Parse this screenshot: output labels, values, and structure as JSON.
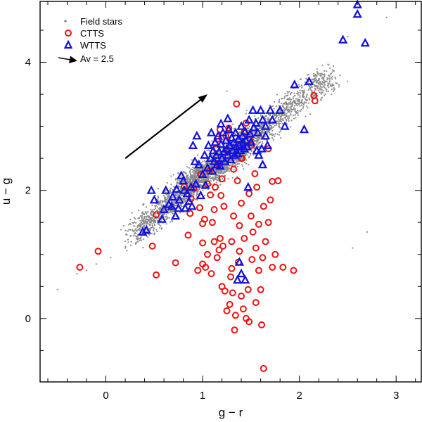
{
  "chart_data": {
    "type": "scatter",
    "xlabel": "g − r",
    "ylabel": "u − g",
    "xlim": [
      -0.68,
      3.26
    ],
    "ylim": [
      -0.99,
      4.95
    ],
    "x_ticks": [
      0,
      1,
      2,
      3
    ],
    "x_tick_labels": [
      "0",
      "1",
      "2",
      "3"
    ],
    "y_ticks": [
      0,
      2,
      4
    ],
    "y_tick_labels": [
      "0",
      "2",
      "4"
    ],
    "x_minor_step": 0.2,
    "y_minor_step": 0.5,
    "grid": false,
    "legend_position": "top-left",
    "colors": {
      "field": "#8c8c8c",
      "ctts": "#ee1111",
      "wtts": "#1111dd",
      "arrow": "#000000"
    },
    "field_stars_trend": {
      "description": "dense stellar locus of field stars",
      "core_segments": [
        {
          "x": [
            0.3,
            0.8
          ],
          "y": [
            1.3,
            2.0
          ]
        },
        {
          "x": [
            0.8,
            1.5
          ],
          "y": [
            2.0,
            2.8
          ]
        },
        {
          "x": [
            1.5,
            2.3
          ],
          "y": [
            2.8,
            3.8
          ]
        }
      ],
      "extended_points": [
        [
          -0.5,
          0.45
        ],
        [
          -0.3,
          0.7
        ],
        [
          -0.2,
          0.75
        ],
        [
          -0.1,
          0.85
        ],
        [
          0.05,
          0.95
        ],
        [
          2.5,
          4.4
        ],
        [
          2.7,
          4.3
        ],
        [
          2.9,
          4.7
        ],
        [
          3.0,
          4.85
        ],
        [
          2.55,
          1.1
        ],
        [
          2.7,
          1.35
        ],
        [
          0.2,
          1.1
        ],
        [
          0.95,
          2.55
        ],
        [
          1.25,
          3.55
        ],
        [
          1.45,
          3.2
        ]
      ]
    },
    "series": [
      {
        "name": "Field stars",
        "marker": "dot",
        "points": []
      },
      {
        "name": "CTTS",
        "marker": "circle",
        "points": [
          [
            -0.08,
            1.05
          ],
          [
            -0.27,
            0.8
          ],
          [
            0.52,
            0.68
          ],
          [
            0.48,
            1.13
          ],
          [
            0.52,
            1.62
          ],
          [
            0.72,
            0.87
          ],
          [
            0.81,
            2.06
          ],
          [
            0.85,
            1.3
          ],
          [
            0.87,
            1.64
          ],
          [
            0.88,
            1.87
          ],
          [
            0.91,
            2.03
          ],
          [
            0.95,
            0.75
          ],
          [
            0.97,
            1.73
          ],
          [
            0.98,
            2.25
          ],
          [
            1.0,
            0.85
          ],
          [
            1.0,
            1.18
          ],
          [
            1.0,
            1.48
          ],
          [
            1.02,
            1.55
          ],
          [
            1.03,
            0.8
          ],
          [
            1.05,
            1.0
          ],
          [
            1.05,
            2.1
          ],
          [
            1.07,
            2.3
          ],
          [
            1.08,
            1.93
          ],
          [
            1.09,
            0.7
          ],
          [
            1.1,
            1.5
          ],
          [
            1.12,
            1.2
          ],
          [
            1.12,
            1.7
          ],
          [
            1.13,
            2.05
          ],
          [
            1.14,
            2.65
          ],
          [
            1.15,
            0.95
          ],
          [
            1.15,
            2.8
          ],
          [
            1.16,
            2.42
          ],
          [
            1.17,
            1.07
          ],
          [
            1.18,
            1.25
          ],
          [
            1.18,
            2.95
          ],
          [
            1.19,
            1.92
          ],
          [
            1.2,
            0.5
          ],
          [
            1.2,
            2.18
          ],
          [
            1.21,
            1.13
          ],
          [
            1.22,
            1.75
          ],
          [
            1.23,
            0.43
          ],
          [
            1.24,
            2.85
          ],
          [
            1.25,
            0.12
          ],
          [
            1.26,
            2.6
          ],
          [
            1.27,
            2.97
          ],
          [
            1.28,
            0.22
          ],
          [
            1.29,
            0.65
          ],
          [
            1.3,
            0.78
          ],
          [
            1.3,
            1.2
          ],
          [
            1.31,
            0.4
          ],
          [
            1.32,
            1.6
          ],
          [
            1.32,
            2.33
          ],
          [
            1.33,
            -0.18
          ],
          [
            1.34,
            0.05
          ],
          [
            1.35,
            3.35
          ],
          [
            1.36,
            2.15
          ],
          [
            1.37,
            0.88
          ],
          [
            1.38,
            1.05
          ],
          [
            1.38,
            1.45
          ],
          [
            1.4,
            0.35
          ],
          [
            1.4,
            1.8
          ],
          [
            1.41,
            2.5
          ],
          [
            1.42,
            0.15
          ],
          [
            1.43,
            1.25
          ],
          [
            1.43,
            2.9
          ],
          [
            1.45,
            0.0
          ],
          [
            1.45,
            3.05
          ],
          [
            1.47,
            0.45
          ],
          [
            1.48,
            1.95
          ],
          [
            1.48,
            -0.05
          ],
          [
            1.5,
            1.6
          ],
          [
            1.5,
            2.7
          ],
          [
            1.51,
            0.92
          ],
          [
            1.52,
            1.35
          ],
          [
            1.54,
            2.26
          ],
          [
            1.55,
            0.25
          ],
          [
            1.55,
            1.1
          ],
          [
            1.56,
            2.05
          ],
          [
            1.58,
            0.75
          ],
          [
            1.58,
            1.47
          ],
          [
            1.6,
            0.45
          ],
          [
            1.61,
            -0.1
          ],
          [
            1.62,
            0.95
          ],
          [
            1.63,
            1.75
          ],
          [
            1.63,
            -0.78
          ],
          [
            1.65,
            1.2
          ],
          [
            1.68,
            1.5
          ],
          [
            1.68,
            2.65
          ],
          [
            1.7,
            1.85
          ],
          [
            1.72,
            0.8
          ],
          [
            1.72,
            2.14
          ],
          [
            1.75,
            1.0
          ],
          [
            1.78,
            2.15
          ],
          [
            1.83,
            0.8
          ],
          [
            1.94,
            0.75
          ],
          [
            2.16,
            3.4
          ],
          [
            2.15,
            3.48
          ],
          [
            1.49,
            2.8
          ],
          [
            1.4,
            2.5
          ]
        ]
      },
      {
        "name": "WTTS",
        "marker": "triangle",
        "points": [
          [
            0.38,
            1.35
          ],
          [
            0.42,
            1.38
          ],
          [
            0.47,
            2.0
          ],
          [
            0.5,
            1.85
          ],
          [
            0.58,
            1.55
          ],
          [
            0.6,
            1.7
          ],
          [
            0.62,
            2.0
          ],
          [
            0.65,
            1.78
          ],
          [
            0.68,
            1.75
          ],
          [
            0.69,
            1.9
          ],
          [
            0.72,
            1.6
          ],
          [
            0.73,
            2.02
          ],
          [
            0.75,
            1.72
          ],
          [
            0.76,
            1.85
          ],
          [
            0.78,
            2.23
          ],
          [
            0.8,
            2.15
          ],
          [
            0.81,
            2.0
          ],
          [
            0.82,
            1.72
          ],
          [
            0.84,
            1.95
          ],
          [
            0.86,
            1.83
          ],
          [
            0.88,
            2.05
          ],
          [
            0.89,
            1.75
          ],
          [
            0.9,
            2.7
          ],
          [
            0.92,
            2.45
          ],
          [
            0.93,
            2.1
          ],
          [
            0.94,
            2.85
          ],
          [
            0.96,
            2.4
          ],
          [
            0.98,
            1.92
          ],
          [
            1.0,
            2.25
          ],
          [
            1.02,
            2.55
          ],
          [
            1.03,
            2.08
          ],
          [
            1.05,
            2.35
          ],
          [
            1.06,
            2.7
          ],
          [
            1.08,
            2.5
          ],
          [
            1.09,
            2.9
          ],
          [
            1.1,
            2.3
          ],
          [
            1.11,
            2.62
          ],
          [
            1.12,
            2.45
          ],
          [
            1.13,
            2.75
          ],
          [
            1.14,
            2.55
          ],
          [
            1.15,
            2.4
          ],
          [
            1.16,
            2.85
          ],
          [
            1.17,
            2.6
          ],
          [
            1.18,
            2.38
          ],
          [
            1.19,
            2.72
          ],
          [
            1.2,
            2.5
          ],
          [
            1.21,
            2.9
          ],
          [
            1.22,
            2.6
          ],
          [
            1.23,
            2.45
          ],
          [
            1.24,
            2.78
          ],
          [
            1.25,
            2.65
          ],
          [
            1.26,
            2.55
          ],
          [
            1.27,
            2.95
          ],
          [
            1.28,
            2.7
          ],
          [
            1.29,
            2.48
          ],
          [
            1.3,
            2.82
          ],
          [
            1.31,
            2.62
          ],
          [
            1.32,
            2.75
          ],
          [
            1.33,
            2.55
          ],
          [
            1.34,
            2.9
          ],
          [
            1.35,
            2.68
          ],
          [
            1.36,
            2.58
          ],
          [
            1.37,
            2.8
          ],
          [
            1.38,
            2.7
          ],
          [
            1.39,
            2.62
          ],
          [
            1.4,
            3.0
          ],
          [
            1.41,
            2.85
          ],
          [
            1.42,
            2.75
          ],
          [
            1.43,
            2.65
          ],
          [
            1.44,
            2.92
          ],
          [
            1.45,
            2.78
          ],
          [
            1.46,
            2.68
          ],
          [
            1.48,
            3.1
          ],
          [
            1.49,
            2.88
          ],
          [
            1.5,
            2.75
          ],
          [
            1.52,
            3.25
          ],
          [
            1.53,
            2.98
          ],
          [
            1.55,
            3.05
          ],
          [
            1.57,
            2.9
          ],
          [
            1.6,
            3.25
          ],
          [
            1.62,
            3.1
          ],
          [
            1.65,
            3.0
          ],
          [
            1.7,
            3.25
          ],
          [
            1.72,
            3.1
          ],
          [
            1.8,
            3.25
          ],
          [
            1.85,
            3.0
          ],
          [
            1.65,
            2.85
          ],
          [
            1.67,
            2.7
          ],
          [
            1.61,
            2.65
          ],
          [
            1.26,
            3.12
          ],
          [
            1.19,
            3.04
          ],
          [
            1.44,
            0.6
          ],
          [
            1.36,
            0.6
          ],
          [
            1.4,
            0.7
          ],
          [
            1.38,
            0.88
          ],
          [
            1.95,
            3.65
          ],
          [
            2.1,
            3.7
          ],
          [
            2.05,
            2.95
          ],
          [
            2.45,
            4.35
          ],
          [
            2.6,
            4.9
          ],
          [
            2.6,
            4.75
          ],
          [
            2.68,
            4.3
          ],
          [
            1.47,
            2.05
          ],
          [
            1.58,
            2.55
          ],
          [
            1.62,
            2.4
          ],
          [
            1.56,
            2.62
          ]
        ]
      }
    ],
    "reddening_vector": {
      "label": "Av = 2.5",
      "from": [
        0.2,
        2.5
      ],
      "to": [
        1.05,
        3.5
      ]
    }
  }
}
